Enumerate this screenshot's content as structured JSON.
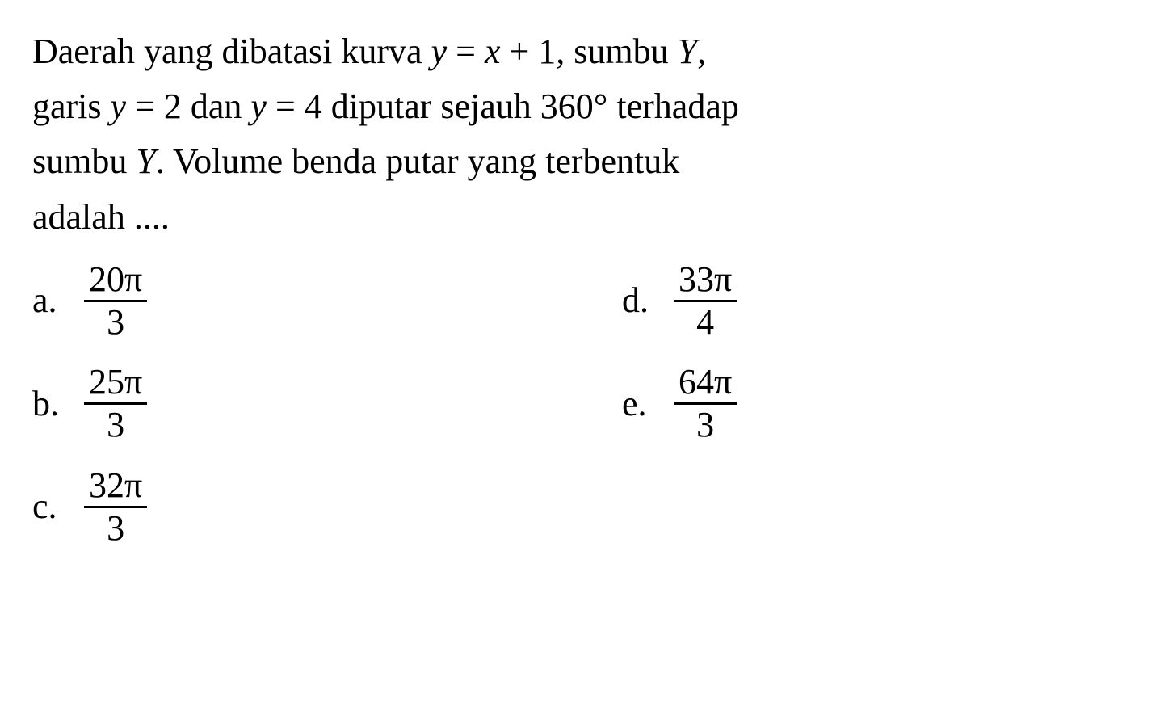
{
  "font": {
    "family": "Times New Roman",
    "size_pt": 32,
    "color": "#000000"
  },
  "background_color": "#ffffff",
  "question_lines": [
    "Daerah yang dibatasi kurva y = x + 1, sumbu Y,",
    "garis y = 2 dan y = 4 diputar sejauh 360° terhadap",
    "sumbu Y. Volume benda putar yang terbentuk",
    "adalah ...."
  ],
  "options": [
    {
      "label": "a.",
      "numerator": "20π",
      "denominator": "3",
      "col": 1,
      "row": 1
    },
    {
      "label": "b.",
      "numerator": "25π",
      "denominator": "3",
      "col": 1,
      "row": 2
    },
    {
      "label": "c.",
      "numerator": "32π",
      "denominator": "3",
      "col": 1,
      "row": 3
    },
    {
      "label": "d.",
      "numerator": "33π",
      "denominator": "4",
      "col": 2,
      "row": 1
    },
    {
      "label": "e.",
      "numerator": "64π",
      "denominator": "3",
      "col": 2,
      "row": 2
    }
  ],
  "math": {
    "curve": "y = x + 1",
    "axis": "Y",
    "line1": "y = 2",
    "line2": "y = 4",
    "rotation": "360°"
  }
}
